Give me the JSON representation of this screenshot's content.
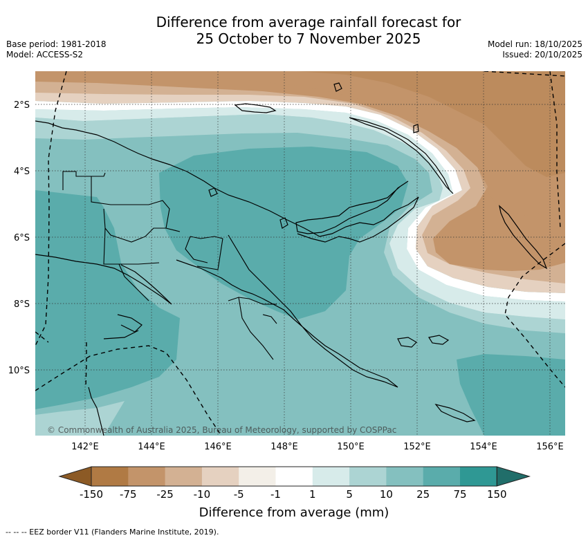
{
  "header": {
    "title_line1": "Difference from average rainfall forecast for",
    "title_line2": "25 October to 7 November 2025",
    "base_period": "Base period: 1981-2018",
    "model": "Model: ACCESS-S2",
    "model_run": "Model run: 18/10/2025",
    "issued": "Issued: 20/10/2025"
  },
  "map": {
    "lon_labels": [
      "142°E",
      "144°E",
      "146°E",
      "148°E",
      "150°E",
      "152°E",
      "154°E",
      "156°E"
    ],
    "lat_labels": [
      "2°S",
      "4°S",
      "6°S",
      "8°S",
      "10°S"
    ],
    "copyright": "© Commonwealth of Australia 2025, Bureau of Meteorology, supported by COSPPac"
  },
  "colorbar": {
    "ticks": [
      "-150",
      "-75",
      "-25",
      "-10",
      "-5",
      "-1",
      "1",
      "5",
      "10",
      "25",
      "75",
      "150"
    ],
    "colors": [
      "#8c5a25",
      "#b07a44",
      "#c3946a",
      "#d3b193",
      "#e5d1c0",
      "#f3efe8",
      "#ffffff",
      "#d7ebea",
      "#acd4d3",
      "#84c0bf",
      "#5aacab",
      "#2f9894",
      "#216e6a"
    ],
    "label": "Difference from average (mm)"
  },
  "footer": {
    "eez_legend": "--  --  -- EEZ border V11 (Flanders Marine Institute, 2019)."
  }
}
